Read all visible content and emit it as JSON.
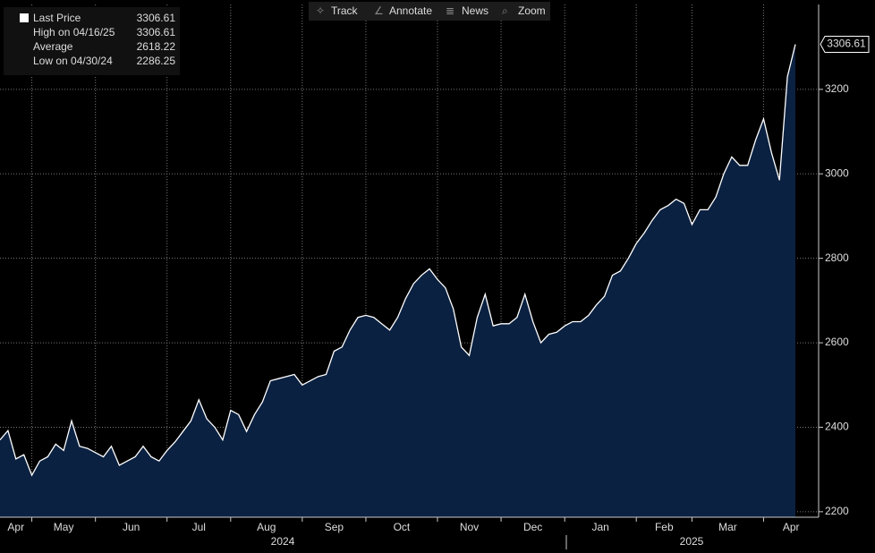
{
  "toolbar": {
    "buttons": [
      "Track",
      "Annotate",
      "News",
      "Zoom"
    ]
  },
  "legend": {
    "items": [
      {
        "label": "Last Price",
        "value": 3306.61
      },
      {
        "label": "High on 04/16/25",
        "value": 3306.61
      },
      {
        "label": "Average",
        "value": 2618.22
      },
      {
        "label": "Low on 04/30/24",
        "value": 2286.25
      }
    ]
  },
  "chart_data": {
    "type": "area",
    "years": [
      "2024",
      "2025"
    ],
    "categories": [
      "Apr",
      null,
      null,
      null,
      "May",
      null,
      null,
      null,
      null,
      null,
      null,
      null,
      "Jun",
      null,
      null,
      null,
      null,
      null,
      null,
      null,
      null,
      "Jul",
      null,
      null,
      null,
      null,
      null,
      null,
      null,
      "Aug",
      null,
      null,
      null,
      null,
      null,
      null,
      null,
      null,
      "Sep",
      null,
      null,
      null,
      null,
      null,
      null,
      null,
      "Oct",
      null,
      null,
      null,
      null,
      null,
      null,
      null,
      null,
      "Nov",
      null,
      null,
      null,
      null,
      null,
      null,
      null,
      "Dec",
      null,
      null,
      null,
      null,
      null,
      null,
      null,
      "Jan",
      null,
      null,
      null,
      null,
      null,
      null,
      null,
      null,
      "Feb",
      null,
      null,
      null,
      null,
      null,
      null,
      "Mar",
      null,
      null,
      null,
      null,
      null,
      null,
      null,
      null,
      "Apr",
      null,
      null,
      null,
      null
    ],
    "values": [
      2370,
      2392,
      2325,
      2335,
      2286.25,
      2320,
      2330,
      2360,
      2345,
      2415,
      2355,
      2350,
      2340,
      2330,
      2355,
      2310,
      2320,
      2330,
      2355,
      2330,
      2320,
      2345,
      2365,
      2390,
      2415,
      2465,
      2420,
      2400,
      2370,
      2440,
      2430,
      2390,
      2430,
      2460,
      2510,
      2515,
      2520,
      2525,
      2500,
      2510,
      2520,
      2525,
      2580,
      2590,
      2630,
      2660,
      2665,
      2660,
      2645,
      2630,
      2660,
      2705,
      2740,
      2760,
      2775,
      2750,
      2730,
      2680,
      2590,
      2570,
      2660,
      2715,
      2640,
      2645,
      2645,
      2660,
      2715,
      2650,
      2600,
      2620,
      2625,
      2640,
      2650,
      2650,
      2665,
      2690,
      2710,
      2760,
      2770,
      2800,
      2835,
      2860,
      2890,
      2915,
      2925,
      2940,
      2930,
      2880,
      2915,
      2915,
      2945,
      3000,
      3040,
      3020,
      3020,
      3080,
      3130,
      3050,
      2985,
      3230,
      3306.61
    ],
    "color": "#ffffff",
    "fill": "#0b2141",
    "ylim": [
      2187,
      3401
    ],
    "yticks": [
      2200,
      2400,
      2600,
      2800,
      3000,
      3200
    ],
    "grid": true
  }
}
